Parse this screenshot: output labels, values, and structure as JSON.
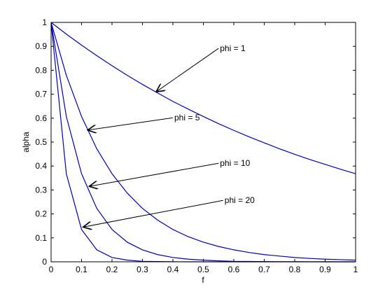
{
  "chart_data": {
    "type": "line",
    "title": "",
    "xlabel": "f",
    "ylabel": "alpha",
    "xlim": [
      0,
      1
    ],
    "ylim": [
      0,
      1
    ],
    "grid": false,
    "legend": "none",
    "x_ticks": [
      "0",
      "0.1",
      "0.2",
      "0.3",
      "0.4",
      "0.5",
      "0.6",
      "0.7",
      "0.8",
      "0.9",
      "1"
    ],
    "y_ticks": [
      "0",
      "0.1",
      "0.2",
      "0.3",
      "0.4",
      "0.5",
      "0.6",
      "0.7",
      "0.8",
      "0.9",
      "1"
    ],
    "line_color": "#0000bb",
    "series": [
      {
        "phi": 1,
        "x": [
          0,
          0.05,
          0.1,
          0.15,
          0.2,
          0.25,
          0.3,
          0.35,
          0.4,
          0.45,
          0.5,
          0.55,
          0.6,
          0.65,
          0.7,
          0.75,
          0.8,
          0.85,
          0.9,
          0.95,
          1
        ],
        "y": [
          1,
          0.951,
          0.905,
          0.861,
          0.819,
          0.779,
          0.741,
          0.705,
          0.67,
          0.638,
          0.607,
          0.577,
          0.549,
          0.522,
          0.497,
          0.472,
          0.449,
          0.427,
          0.407,
          0.387,
          0.368
        ]
      },
      {
        "phi": 5,
        "x": [
          0,
          0.05,
          0.1,
          0.15,
          0.2,
          0.25,
          0.3,
          0.35,
          0.4,
          0.45,
          0.5,
          0.55,
          0.6,
          0.65,
          0.7,
          0.75,
          0.8,
          0.85,
          0.9,
          0.95,
          1
        ],
        "y": [
          1,
          0.779,
          0.607,
          0.472,
          0.368,
          0.287,
          0.223,
          0.174,
          0.135,
          0.105,
          0.082,
          0.064,
          0.05,
          0.039,
          0.03,
          0.024,
          0.018,
          0.014,
          0.011,
          0.009,
          0.007
        ]
      },
      {
        "phi": 10,
        "x": [
          0,
          0.05,
          0.1,
          0.15,
          0.2,
          0.25,
          0.3,
          0.35,
          0.4,
          0.45,
          0.5,
          0.55,
          0.6,
          0.65,
          0.7,
          0.75,
          0.8,
          0.85,
          0.9,
          0.95,
          1
        ],
        "y": [
          1,
          0.607,
          0.368,
          0.223,
          0.135,
          0.082,
          0.05,
          0.03,
          0.018,
          0.011,
          0.007,
          0.004,
          0.002,
          0.0015,
          0.0009,
          0.0006,
          0.0003,
          0.0002,
          0.0001,
          0.0001,
          0
        ]
      },
      {
        "phi": 20,
        "x": [
          0,
          0.05,
          0.1,
          0.15,
          0.2,
          0.25,
          0.3,
          0.35,
          0.4,
          0.45,
          0.5,
          0.55,
          0.6,
          0.65,
          0.7,
          0.75,
          0.8,
          0.85,
          0.9,
          0.95,
          1
        ],
        "y": [
          1,
          0.368,
          0.135,
          0.05,
          0.018,
          0.007,
          0.002,
          0.001,
          0.0003,
          0.0001,
          0,
          0,
          0,
          0,
          0,
          0,
          0,
          0,
          0,
          0,
          0
        ]
      }
    ],
    "annotations": [
      {
        "text": "phi = 1",
        "text_x": 0.55,
        "text_y": 0.88,
        "arrow_x": 0.345,
        "arrow_y": 0.71
      },
      {
        "text": "phi = 5",
        "text_x": 0.4,
        "text_y": 0.59,
        "arrow_x": 0.12,
        "arrow_y": 0.55
      },
      {
        "text": "phi = 10",
        "text_x": 0.55,
        "text_y": 0.4,
        "arrow_x": 0.125,
        "arrow_y": 0.315
      },
      {
        "text": "phi = 20",
        "text_x": 0.565,
        "text_y": 0.245,
        "arrow_x": 0.105,
        "arrow_y": 0.145
      }
    ]
  }
}
